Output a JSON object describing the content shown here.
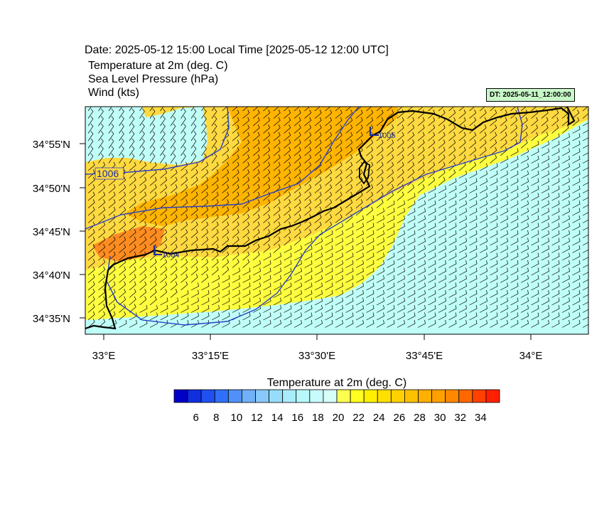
{
  "header": {
    "date_line": "Date: 2025-05-12  15:00 Local Time [2025-05-12  12:00 UTC]",
    "field_temperature": "Temperature at 2m   (deg. C)",
    "field_pressure": "Sea Level Pressure   (hPa)",
    "field_wind": "Wind   (kts)",
    "dt_badge": "DT: 2025-05-11_12:00:00"
  },
  "map": {
    "lat_ticks": [
      "34°55'N",
      "34°50'N",
      "34°45'N",
      "34°40'N",
      "34°35'N"
    ],
    "lon_ticks": [
      "33°E",
      "33°15'E",
      "33°30'E",
      "33°45'E",
      "34°E"
    ],
    "isobar_labels": [
      "1006",
      "1004",
      "1005"
    ],
    "colors": {
      "land_warm": "#ffd940",
      "land_yellow": "#ffff40",
      "sea_cool": "#c0fff8",
      "warm_orange": "#ffb400",
      "hot_orange": "#ff8c20",
      "isobar": "#2840c8",
      "coastline": "#000000"
    }
  },
  "colorbar": {
    "title": "Temperature at 2m  (deg. C)",
    "tick_labels": [
      "6",
      "8",
      "10",
      "12",
      "14",
      "16",
      "18",
      "20",
      "22",
      "24",
      "26",
      "28",
      "30",
      "32",
      "34"
    ],
    "colors": [
      "#0000c8",
      "#1030e0",
      "#2050f0",
      "#3070f8",
      "#5090f8",
      "#70b0f8",
      "#88c8fa",
      "#98dcfc",
      "#a8ecfc",
      "#b8f8fc",
      "#c8fcfc",
      "#d8fefa",
      "#ffff50",
      "#ffff20",
      "#fff000",
      "#ffe000",
      "#ffd000",
      "#ffc000",
      "#ffb000",
      "#ffa000",
      "#ff8800",
      "#ff6800",
      "#ff4000",
      "#ff2000"
    ]
  }
}
